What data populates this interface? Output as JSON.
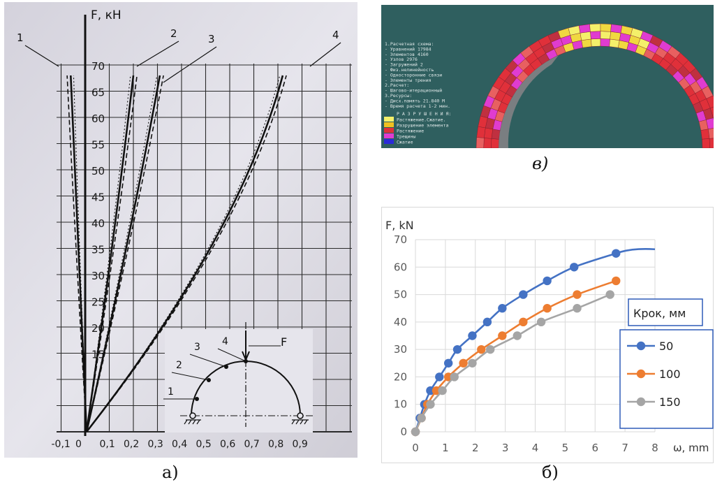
{
  "captions": {
    "a": "а)",
    "b": "б)",
    "v": "в)"
  },
  "photo_chart": {
    "y_axis_label": "F, кН",
    "y_ticks": [
      15,
      20,
      25,
      30,
      35,
      40,
      45,
      50,
      55,
      60,
      65,
      70
    ],
    "x_ticks": [
      "-0,1",
      "0",
      "0,1",
      "0,2",
      "0,3",
      "0,4",
      "0,5",
      "0,6",
      "0,7",
      "0,8",
      "0,9"
    ],
    "curve_labels": [
      "1",
      "2",
      "3",
      "4"
    ],
    "scheme": {
      "labels": [
        "1",
        "2",
        "3",
        "4"
      ],
      "load_label": "F"
    }
  },
  "fem_legend": {
    "lines": [
      "1.Расчетная схема:",
      " - Уравнений  17984",
      " - Элементов  4160",
      " - Узлов      2976",
      " - Загружений  2",
      " - Физ.нелинейность",
      " - Односторонние связи",
      " - Элементы трения",
      "2.Расчет:",
      " - Шагово-итерационный",
      "3.Ресурсы:",
      " - Дисх.память  21.840 М",
      " - Время расчета 1-2 мин."
    ],
    "damage_title": "Р А З Р У Ш Е Н И Я:",
    "damage_items": [
      {
        "label": "Растяжение.Сжатие.",
        "color": "#f4f06a"
      },
      {
        "label": "Разрушение элемента",
        "color": "#f0c020"
      },
      {
        "label": "Растяжение",
        "color": "#e0303a"
      },
      {
        "label": "Трещины",
        "color": "#e03cd0"
      },
      {
        "label": "Сжатие",
        "color": "#2a2ad8"
      }
    ]
  },
  "chart_data": {
    "type": "line",
    "ylabel": "F, kN",
    "xlabel": "ω, mm",
    "xlim": [
      0,
      8
    ],
    "ylim": [
      0,
      70
    ],
    "x_ticks": [
      0,
      1,
      2,
      3,
      4,
      5,
      6,
      7,
      8
    ],
    "y_ticks": [
      0,
      10,
      20,
      30,
      40,
      50,
      60,
      70
    ],
    "grid": true,
    "legend_title": "Крок, мм",
    "legend_position": "right",
    "series": [
      {
        "name": "50",
        "color": "#4472c4",
        "x": [
          0,
          0.15,
          0.3,
          0.5,
          0.8,
          1.1,
          1.4,
          1.9,
          2.4,
          2.9,
          3.6,
          4.4,
          5.3,
          6.7
        ],
        "y": [
          0,
          5,
          10,
          15,
          20,
          25,
          30,
          35,
          40,
          45,
          50,
          55,
          60,
          65
        ]
      },
      {
        "name": "100",
        "color": "#ed7d31",
        "x": [
          0,
          0.2,
          0.4,
          0.7,
          1.1,
          1.6,
          2.2,
          2.9,
          3.6,
          4.4,
          5.4,
          6.7
        ],
        "y": [
          0,
          5,
          10,
          15,
          20,
          25,
          30,
          35,
          40,
          45,
          50,
          55
        ]
      },
      {
        "name": "150",
        "color": "#a5a5a5",
        "x": [
          0,
          0.2,
          0.5,
          0.9,
          1.3,
          1.9,
          2.5,
          3.4,
          4.2,
          5.4,
          6.5
        ],
        "y": [
          0,
          5,
          10,
          15,
          20,
          25,
          30,
          35,
          40,
          45,
          50
        ]
      }
    ]
  }
}
